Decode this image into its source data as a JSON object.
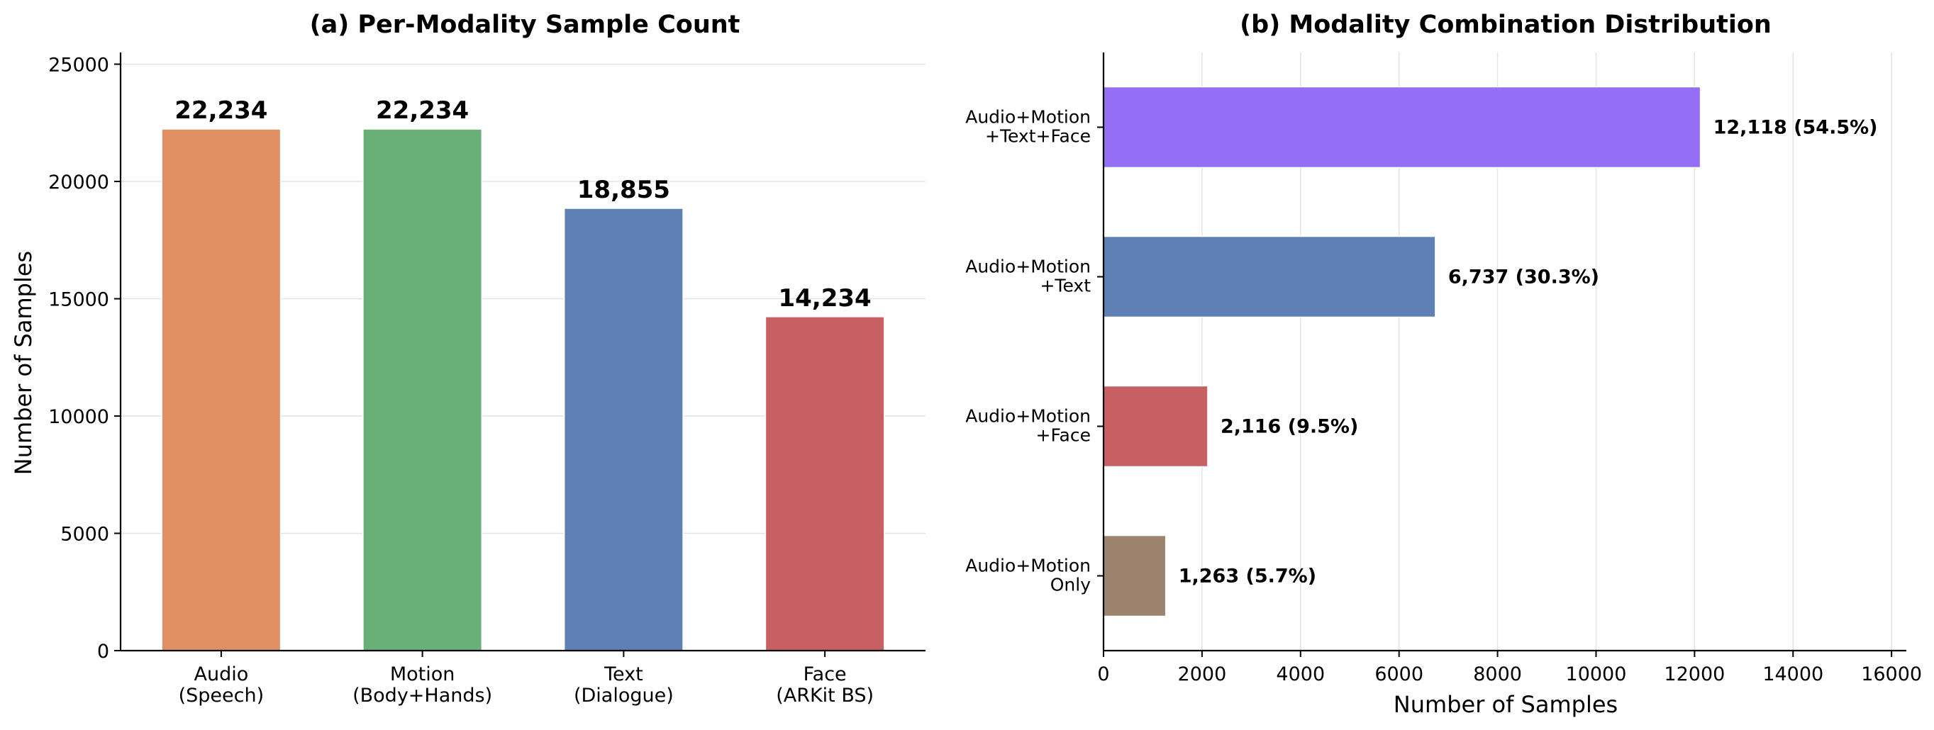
{
  "chart_data": [
    {
      "type": "bar",
      "title": "(a) Per-Modality Sample Count",
      "xlabel": "",
      "ylabel": "Number of Samples",
      "ylim": [
        0,
        25500
      ],
      "yticks": [
        0,
        5000,
        10000,
        15000,
        20000,
        25000
      ],
      "grid": "y",
      "categories": [
        [
          "Audio",
          "(Speech)"
        ],
        [
          "Motion",
          "(Body+Hands)"
        ],
        [
          "Text",
          "(Dialogue)"
        ],
        [
          "Face",
          "(ARKit BS)"
        ]
      ],
      "values": [
        22234,
        22234,
        18855,
        14234
      ],
      "labels": [
        "22,234",
        "22,234",
        "18,855",
        "14,234"
      ],
      "colors": [
        "#e08f63",
        "#68b076",
        "#5f80b5",
        "#c85f63"
      ]
    },
    {
      "type": "bar",
      "orientation": "horizontal",
      "title": "(b) Modality Combination Distribution",
      "xlabel": "Number of Samples",
      "ylabel": "",
      "xlim": [
        0,
        16300
      ],
      "xticks": [
        0,
        2000,
        4000,
        6000,
        8000,
        10000,
        12000,
        14000,
        16000
      ],
      "grid": "x",
      "categories": [
        [
          "Audio+Motion",
          "+Text+Face"
        ],
        [
          "Audio+Motion",
          "+Text"
        ],
        [
          "Audio+Motion",
          "+Face"
        ],
        [
          "Audio+Motion",
          "Only"
        ]
      ],
      "values": [
        12118,
        6737,
        2116,
        1263
      ],
      "labels": [
        "12,118 (54.5%)",
        "6,737 (30.3%)",
        "2,116 (9.5%)",
        "1,263 (5.7%)"
      ],
      "colors": [
        "#946ff5",
        "#5f80b5",
        "#c85f63",
        "#9c836d"
      ]
    }
  ]
}
